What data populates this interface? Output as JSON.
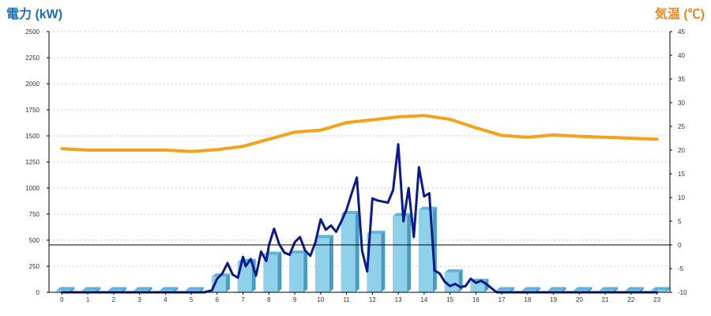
{
  "colors": {
    "left_axis_title": "#1a6fb5",
    "right_axis_title": "#e8891d",
    "bar_front": "#8fd0ea",
    "bar_side": "#4a9cbf",
    "bar_top": "#5fb4d6",
    "power_line": "#0a1a8c",
    "temp_line": "#f5a21a"
  },
  "chart_data": {
    "type": "bar+line",
    "left_axis_title": "電力 (kW)",
    "right_axis_title": "気温 (℃)",
    "y_left": {
      "min": 0,
      "max": 2500,
      "ticks": [
        0,
        250,
        500,
        750,
        1000,
        1250,
        1500,
        1750,
        2000,
        2250,
        2500
      ]
    },
    "y_right": {
      "min": -10,
      "max": 45,
      "ticks": [
        -10,
        -5,
        0,
        5,
        10,
        15,
        20,
        25,
        30,
        35,
        40,
        45
      ]
    },
    "grid": true,
    "categories": [
      "0",
      "1",
      "2",
      "3",
      "4",
      "5",
      "6",
      "7",
      "8",
      "9",
      "10",
      "11",
      "12",
      "13",
      "14",
      "15",
      "16",
      "17",
      "18",
      "19",
      "20",
      "21",
      "22",
      "23"
    ],
    "series": [
      {
        "kind": "bar",
        "axis": "left",
        "values": [
          20,
          20,
          20,
          20,
          20,
          20,
          150,
          290,
          360,
          370,
          520,
          750,
          560,
          730,
          790,
          190,
          100,
          20,
          20,
          20,
          20,
          20,
          20,
          20
        ]
      },
      {
        "kind": "line",
        "axis": "left",
        "x": [
          0,
          0.5,
          1,
          1.5,
          2,
          2.5,
          3,
          3.5,
          4,
          4.5,
          5,
          5.2,
          5.5,
          5.8,
          6,
          6.2,
          6.4,
          6.6,
          6.8,
          7,
          7.1,
          7.3,
          7.5,
          7.7,
          7.9,
          8.0,
          8.2,
          8.4,
          8.6,
          8.8,
          9.0,
          9.2,
          9.4,
          9.6,
          9.8,
          10.0,
          10.2,
          10.4,
          10.6,
          10.8,
          11.0,
          11.2,
          11.4,
          11.6,
          11.8,
          12.0,
          12.2,
          12.4,
          12.6,
          12.8,
          13.0,
          13.2,
          13.4,
          13.6,
          13.8,
          14.0,
          14.2,
          14.4,
          14.6,
          14.8,
          15.0,
          15.2,
          15.4,
          15.6,
          15.8,
          16.0,
          16.2,
          16.4,
          16.6,
          16.8,
          17,
          18,
          19,
          20,
          21,
          22,
          23
        ],
        "values": [
          0,
          0,
          0,
          0,
          0,
          0,
          0,
          0,
          0,
          0,
          0,
          0,
          0,
          20,
          130,
          180,
          280,
          170,
          140,
          340,
          250,
          320,
          160,
          390,
          300,
          450,
          610,
          460,
          380,
          360,
          480,
          530,
          400,
          350,
          480,
          700,
          600,
          640,
          580,
          680,
          790,
          950,
          1100,
          400,
          200,
          900,
          880,
          870,
          860,
          980,
          1420,
          680,
          1000,
          530,
          1200,
          920,
          950,
          210,
          180,
          100,
          60,
          80,
          50,
          60,
          130,
          90,
          110,
          80,
          40,
          0,
          0,
          0,
          0,
          0,
          0,
          0,
          0
        ]
      },
      {
        "kind": "line",
        "axis": "right",
        "x": [
          0,
          1,
          2,
          3,
          4,
          5,
          6,
          7,
          8,
          9,
          10,
          11,
          12,
          13,
          14,
          15,
          16,
          17,
          18,
          19,
          20,
          21,
          22,
          23
        ],
        "values": [
          20.3,
          20.0,
          20.0,
          20.0,
          20.0,
          19.7,
          20.1,
          20.8,
          22.3,
          23.8,
          24.2,
          25.8,
          26.4,
          27.0,
          27.3,
          26.5,
          24.7,
          23.1,
          22.7,
          23.2,
          22.9,
          22.7,
          22.5,
          22.3
        ]
      }
    ]
  }
}
